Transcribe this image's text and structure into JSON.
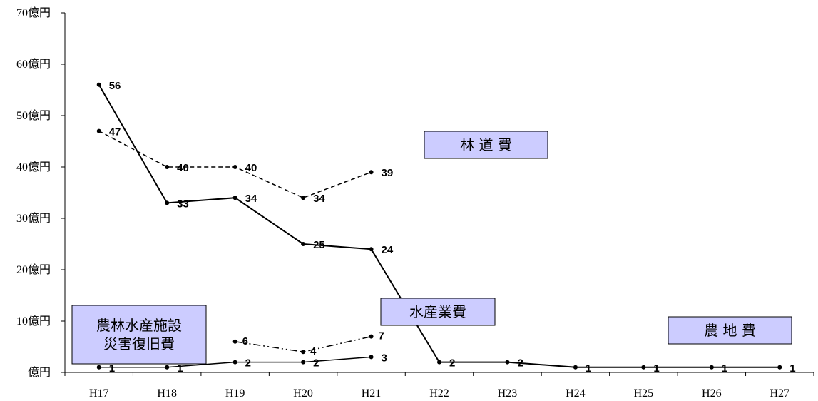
{
  "chart_data": {
    "type": "line",
    "categories": [
      "H17",
      "H18",
      "H19",
      "H20",
      "H21",
      "H22",
      "H23",
      "H24",
      "H25",
      "H26",
      "H27"
    ],
    "y_ticks": [
      "億円",
      "10億円",
      "20億円",
      "30億円",
      "40億円",
      "50億円",
      "60億円",
      "70億円"
    ],
    "ylim": [
      0,
      70
    ],
    "grid": false,
    "series": [
      {
        "name": "林 道 費",
        "style": "dashed",
        "color": "#000000",
        "values": [
          47,
          40,
          40,
          34,
          39,
          null,
          null,
          null,
          null,
          null,
          null
        ],
        "labels": [
          "47",
          "40",
          "40",
          "34",
          "39",
          null,
          null,
          null,
          null,
          null,
          null
        ]
      },
      {
        "name": "農 地 費",
        "style": "solid",
        "color": "#000000",
        "values": [
          56,
          33,
          34,
          25,
          24,
          2,
          2,
          1,
          1,
          1,
          1
        ],
        "labels": [
          "56",
          "33",
          "34",
          "25",
          "24",
          "2",
          "2",
          "1",
          "1",
          "1",
          "1"
        ]
      },
      {
        "name": "農林水産施設災害復旧費",
        "style": "dash-dot",
        "color": "#000000",
        "values": [
          null,
          null,
          6,
          4,
          7,
          null,
          null,
          null,
          null,
          null,
          null
        ],
        "labels": [
          null,
          null,
          "6",
          "4",
          "7",
          null,
          null,
          null,
          null,
          null,
          null
        ]
      },
      {
        "name": "水産業費",
        "style": "solid-thin",
        "color": "#000000",
        "values": [
          1,
          1,
          2,
          2,
          3,
          null,
          null,
          null,
          null,
          null,
          null
        ],
        "labels": [
          "1",
          "1",
          "2",
          "2",
          "3",
          null,
          null,
          null,
          null,
          null,
          null
        ]
      }
    ],
    "annotations": [
      {
        "text": "林 道 費",
        "fill": "#ccccff"
      },
      {
        "text": "水産業費",
        "fill": "#ccccff"
      },
      {
        "text": "農 地 費",
        "fill": "#ccccff"
      },
      {
        "lines": [
          "農林水産施設",
          "災害復旧費"
        ],
        "fill": "#ccccff"
      }
    ]
  }
}
